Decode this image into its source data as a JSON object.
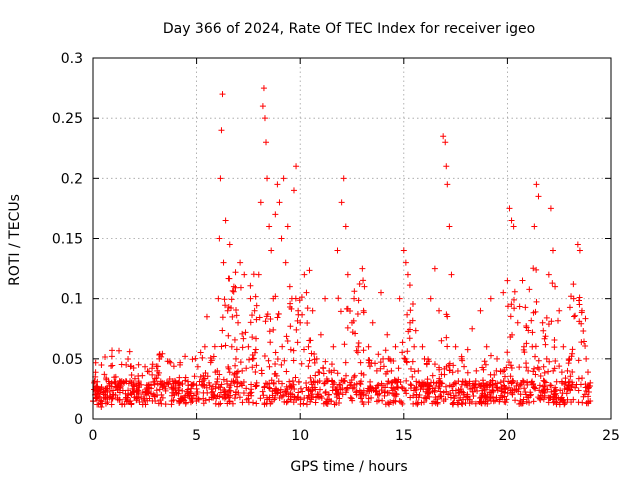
{
  "chart_data": {
    "type": "scatter",
    "title": "Day 366 of 2024, Rate Of TEC Index for receiver igeo",
    "xlabel": "GPS time / hours",
    "ylabel": "ROTI / TECUs",
    "xlim": [
      0,
      25
    ],
    "ylim": [
      0,
      0.3
    ],
    "x_ticks": [
      0,
      5,
      10,
      15,
      20,
      25
    ],
    "y_ticks": [
      0,
      0.05,
      0.1,
      0.15,
      0.2,
      0.25,
      0.3
    ],
    "x_tick_labels": [
      "0",
      "5",
      "10",
      "15",
      "20",
      "25"
    ],
    "y_tick_labels": [
      "0",
      "0.05",
      "0.1",
      "0.15",
      "0.2",
      "0.25",
      "0.3"
    ],
    "grid": true,
    "legend": "none",
    "marker": "plus",
    "color": "#ff0000",
    "density_note_points_are_representative_subset": true,
    "series": [
      {
        "points": [
          [
            0.0,
            0.015
          ],
          [
            0.05,
            0.03
          ],
          [
            0.1,
            0.02
          ],
          [
            0.2,
            0.012
          ],
          [
            0.3,
            0.025
          ],
          [
            0.4,
            0.01
          ],
          [
            0.5,
            0.022
          ],
          [
            0.6,
            0.018
          ],
          [
            0.7,
            0.014
          ],
          [
            0.8,
            0.028
          ],
          [
            0.9,
            0.012
          ],
          [
            1.0,
            0.02
          ],
          [
            1.1,
            0.035
          ],
          [
            1.2,
            0.016
          ],
          [
            1.3,
            0.022
          ],
          [
            1.4,
            0.012
          ],
          [
            1.5,
            0.03
          ],
          [
            1.6,
            0.045
          ],
          [
            1.7,
            0.02
          ],
          [
            1.8,
            0.015
          ],
          [
            1.9,
            0.025
          ],
          [
            2.0,
            0.018
          ],
          [
            2.2,
            0.03
          ],
          [
            2.4,
            0.012
          ],
          [
            2.6,
            0.022
          ],
          [
            2.8,
            0.028
          ],
          [
            3.0,
            0.015
          ],
          [
            3.1,
            0.04
          ],
          [
            3.2,
            0.05
          ],
          [
            3.3,
            0.02
          ],
          [
            3.5,
            0.025
          ],
          [
            3.6,
            0.048
          ],
          [
            3.8,
            0.015
          ],
          [
            4.0,
            0.022
          ],
          [
            4.2,
            0.045
          ],
          [
            4.4,
            0.018
          ],
          [
            4.6,
            0.028
          ],
          [
            4.8,
            0.015
          ],
          [
            5.0,
            0.025
          ],
          [
            5.2,
            0.035
          ],
          [
            5.4,
            0.06
          ],
          [
            5.5,
            0.085
          ],
          [
            5.6,
            0.03
          ],
          [
            5.8,
            0.02
          ],
          [
            6.0,
            0.04
          ],
          [
            6.05,
            0.1
          ],
          [
            6.1,
            0.15
          ],
          [
            6.15,
            0.2
          ],
          [
            6.2,
            0.24
          ],
          [
            6.25,
            0.27
          ],
          [
            6.3,
            0.13
          ],
          [
            6.4,
            0.165
          ],
          [
            6.5,
            0.09
          ],
          [
            6.6,
            0.145
          ],
          [
            6.7,
            0.06
          ],
          [
            6.8,
            0.11
          ],
          [
            6.9,
            0.05
          ],
          [
            7.0,
            0.08
          ],
          [
            7.1,
            0.13
          ],
          [
            7.2,
            0.04
          ],
          [
            7.3,
            0.12
          ],
          [
            7.5,
            0.06
          ],
          [
            7.6,
            0.1
          ],
          [
            7.7,
            0.05
          ],
          [
            7.8,
            0.09
          ],
          [
            7.9,
            0.03
          ],
          [
            8.0,
            0.12
          ],
          [
            8.1,
            0.18
          ],
          [
            8.2,
            0.26
          ],
          [
            8.25,
            0.275
          ],
          [
            8.3,
            0.25
          ],
          [
            8.35,
            0.23
          ],
          [
            8.4,
            0.2
          ],
          [
            8.5,
            0.16
          ],
          [
            8.6,
            0.14
          ],
          [
            8.7,
            0.1
          ],
          [
            8.8,
            0.17
          ],
          [
            8.9,
            0.195
          ],
          [
            9.0,
            0.18
          ],
          [
            9.1,
            0.15
          ],
          [
            9.2,
            0.2
          ],
          [
            9.3,
            0.13
          ],
          [
            9.4,
            0.16
          ],
          [
            9.5,
            0.11
          ],
          [
            9.6,
            0.1
          ],
          [
            9.7,
            0.19
          ],
          [
            9.8,
            0.21
          ],
          [
            9.9,
            0.09
          ],
          [
            10.0,
            0.08
          ],
          [
            10.2,
            0.12
          ],
          [
            10.4,
            0.06
          ],
          [
            10.6,
            0.09
          ],
          [
            10.8,
            0.05
          ],
          [
            11.0,
            0.07
          ],
          [
            11.2,
            0.1
          ],
          [
            11.4,
            0.04
          ],
          [
            11.6,
            0.06
          ],
          [
            11.8,
            0.14
          ],
          [
            12.0,
            0.18
          ],
          [
            12.1,
            0.2
          ],
          [
            12.2,
            0.16
          ],
          [
            12.3,
            0.12
          ],
          [
            12.5,
            0.08
          ],
          [
            12.6,
            0.1
          ],
          [
            12.8,
            0.06
          ],
          [
            13.0,
            0.125
          ],
          [
            13.1,
            0.11
          ],
          [
            13.3,
            0.06
          ],
          [
            13.5,
            0.08
          ],
          [
            13.7,
            0.04
          ],
          [
            13.9,
            0.105
          ],
          [
            14.0,
            0.05
          ],
          [
            14.2,
            0.07
          ],
          [
            14.4,
            0.04
          ],
          [
            14.6,
            0.06
          ],
          [
            14.8,
            0.1
          ],
          [
            15.0,
            0.14
          ],
          [
            15.1,
            0.13
          ],
          [
            15.2,
            0.12
          ],
          [
            15.3,
            0.08
          ],
          [
            15.5,
            0.06
          ],
          [
            15.7,
            0.04
          ],
          [
            15.9,
            0.06
          ],
          [
            16.0,
            0.05
          ],
          [
            16.3,
            0.1
          ],
          [
            16.5,
            0.125
          ],
          [
            16.7,
            0.09
          ],
          [
            16.9,
            0.235
          ],
          [
            17.0,
            0.23
          ],
          [
            17.05,
            0.21
          ],
          [
            17.1,
            0.195
          ],
          [
            17.2,
            0.16
          ],
          [
            17.3,
            0.12
          ],
          [
            17.5,
            0.06
          ],
          [
            17.8,
            0.05
          ],
          [
            18.0,
            0.03
          ],
          [
            18.3,
            0.075
          ],
          [
            18.5,
            0.04
          ],
          [
            18.7,
            0.09
          ],
          [
            19.0,
            0.06
          ],
          [
            19.2,
            0.1
          ],
          [
            19.5,
            0.05
          ],
          [
            19.8,
            0.105
          ],
          [
            20.0,
            0.115
          ],
          [
            20.1,
            0.175
          ],
          [
            20.2,
            0.165
          ],
          [
            20.3,
            0.16
          ],
          [
            20.5,
            0.08
          ],
          [
            20.8,
            0.06
          ],
          [
            21.0,
            0.04
          ],
          [
            21.2,
            0.06
          ],
          [
            21.3,
            0.16
          ],
          [
            21.4,
            0.195
          ],
          [
            21.5,
            0.185
          ],
          [
            21.7,
            0.08
          ],
          [
            21.9,
            0.05
          ],
          [
            22.0,
            0.12
          ],
          [
            22.1,
            0.175
          ],
          [
            22.2,
            0.14
          ],
          [
            22.3,
            0.11
          ],
          [
            22.5,
            0.09
          ],
          [
            22.7,
            0.06
          ],
          [
            22.9,
            0.04
          ],
          [
            23.0,
            0.05
          ],
          [
            23.2,
            0.1
          ],
          [
            23.4,
            0.145
          ],
          [
            23.5,
            0.14
          ],
          [
            23.6,
            0.09
          ],
          [
            23.8,
            0.05
          ],
          [
            24.0,
            0.03
          ]
        ]
      }
    ]
  }
}
